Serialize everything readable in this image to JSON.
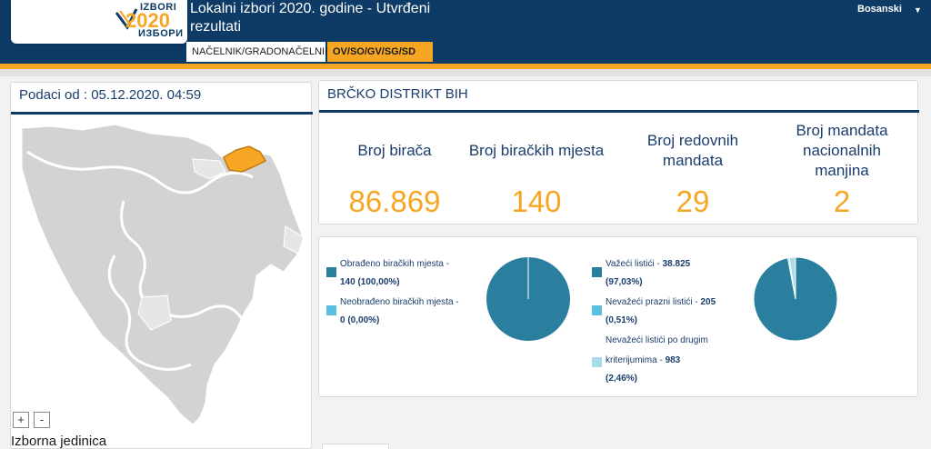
{
  "header": {
    "title": "Lokalni izbori 2020. godine - Utvrđeni rezultati",
    "language": "Bosanski",
    "logo_top": "IZBORI",
    "logo_year": "2020",
    "logo_bottom": "ИЗБОРИ"
  },
  "tabs": [
    {
      "label": "NAČELNIK/GRADONAČELNIK"
    },
    {
      "label": "OV/SO/GV/SG/SD"
    }
  ],
  "left_panel": {
    "date_label": "Podaci od : 05.12.2020. 04:59",
    "zoom_in": "+",
    "zoom_out": "-",
    "footer_label": "Izborna jedinica"
  },
  "district": {
    "name": "BRČKO DISTRIKT BIH"
  },
  "stats": [
    {
      "label": "Broj birača",
      "value": "86.869"
    },
    {
      "label": "Broj biračkih mjesta",
      "value": "140"
    },
    {
      "label": "Broj redovnih mandata",
      "value": "29"
    },
    {
      "label": "Broj mandata nacionalnih manjina",
      "value": "2"
    }
  ],
  "pie1": {
    "legend": [
      {
        "label": "Obrađeno biračkih mjesta -",
        "value": "140 (100,00%)",
        "color": "#2a7f9e"
      },
      {
        "label": "Neobrađeno biračkih mjesta -",
        "value": "0 (0,00%)",
        "color": "#5bc0de"
      }
    ],
    "slices": [
      100.0,
      0.0
    ]
  },
  "pie2": {
    "legend": [
      {
        "label": "Važeći listići - ",
        "value": "38.825",
        "pct": "(97,03%)",
        "color": "#2a7f9e"
      },
      {
        "label": "Nevažeći prazni listići - ",
        "value": "205",
        "pct": "(0,51%)",
        "color": "#5bc0de"
      },
      {
        "label_line1": "Nevažeći listići po drugim",
        "label": "kriterijumima - ",
        "value": "983",
        "pct": "(2,46%)",
        "color": "#a9dcea"
      }
    ],
    "slices": [
      97.03,
      0.51,
      2.46
    ]
  },
  "colors": {
    "navy": "#0d3b66",
    "accent": "#f6a623",
    "pie_main": "#2a7f9e",
    "pie_light": "#5bc0de",
    "pie_lighter": "#a9dcea",
    "map_fill": "#d3d3d3",
    "map_selected": "#f6a623"
  }
}
